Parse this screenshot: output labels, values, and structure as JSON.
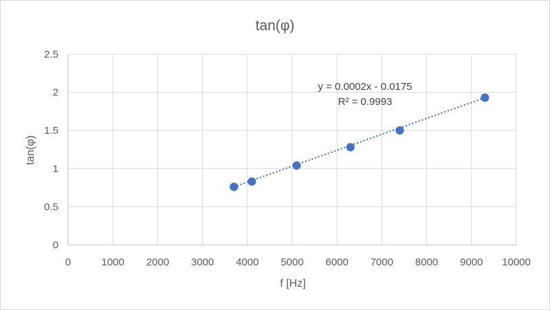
{
  "chart_data": {
    "type": "scatter",
    "title": "tan(φ)",
    "xlabel": "f [Hz]",
    "ylabel": "tan(φ)",
    "xlim": [
      0,
      10000
    ],
    "ylim": [
      0,
      2.5
    ],
    "x_ticks": [
      0,
      1000,
      2000,
      3000,
      4000,
      5000,
      6000,
      7000,
      8000,
      9000,
      10000
    ],
    "y_ticks": [
      0,
      0.5,
      1,
      1.5,
      2,
      2.5
    ],
    "x_tick_labels": [
      "0",
      "1000",
      "2000",
      "3000",
      "4000",
      "5000",
      "6000",
      "7000",
      "8000",
      "9000",
      "10000"
    ],
    "y_tick_labels": [
      "0",
      "0.5",
      "1",
      "1.5",
      "2",
      "2.5"
    ],
    "grid": true,
    "legend": "none",
    "series": [
      {
        "points": [
          {
            "x": 3700,
            "y": 0.76
          },
          {
            "x": 4100,
            "y": 0.83
          },
          {
            "x": 5100,
            "y": 1.04
          },
          {
            "x": 6300,
            "y": 1.28
          },
          {
            "x": 7400,
            "y": 1.5
          },
          {
            "x": 9300,
            "y": 1.93
          }
        ],
        "color": "#4472c4"
      }
    ],
    "trendline": {
      "type": "linear",
      "x_range": [
        3700,
        9300
      ],
      "y_range": [
        0.76,
        1.93
      ],
      "equation": "y = 0.0002x - 0.0175",
      "r_squared": "R² = 0.9993",
      "color": "#4472c4",
      "style": "dotted"
    }
  }
}
